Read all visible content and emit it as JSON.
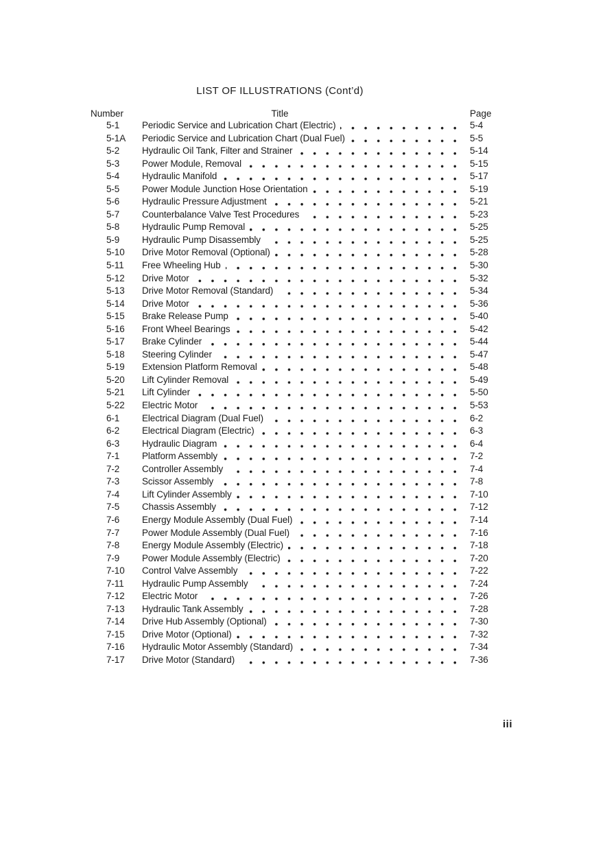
{
  "page": {
    "heading": "LIST OF ILLUSTRATIONS (Cont’d)",
    "columns": {
      "number": "Number",
      "title": "Title",
      "page": "Page"
    },
    "entries": [
      {
        "number": "5-1",
        "title": "Periodic Service and Lubrication Chart (Electric)",
        "page": "5-4"
      },
      {
        "number": "5-1A",
        "title": "Periodic Service and Lubrication Chart (Dual Fuel)",
        "page": "5-5"
      },
      {
        "number": "5-2",
        "title": "Hydraulic Oil Tank, Filter and Strainer",
        "page": "5-14"
      },
      {
        "number": "5-3",
        "title": "Power Module, Removal",
        "page": "5-15"
      },
      {
        "number": "5-4",
        "title": "Hydraulic Manifold",
        "page": "5-17"
      },
      {
        "number": "5-5",
        "title": "Power Module Junction Hose Orientation",
        "page": "5-19"
      },
      {
        "number": "5-6",
        "title": "Hydraulic Pressure Adjustment",
        "page": "5-21"
      },
      {
        "number": "5-7",
        "title": "Counterbalance Valve Test Procedures",
        "page": "5-23"
      },
      {
        "number": "5-8",
        "title": "Hydraulic Pump Removal",
        "page": "5-25"
      },
      {
        "number": "5-9",
        "title": "Hydraulic Pump Disassembly",
        "page": "5-25"
      },
      {
        "number": "5-10",
        "title": "Drive Motor Removal (Optional)",
        "page": "5-28"
      },
      {
        "number": "5-11",
        "title": "Free Wheeling Hub",
        "page": "5-30"
      },
      {
        "number": "5-12",
        "title": "Drive Motor",
        "page": "5-32"
      },
      {
        "number": "5-13",
        "title": "Drive Motor Removal (Standard)",
        "page": "5-34"
      },
      {
        "number": "5-14",
        "title": "Drive Motor",
        "page": "5-36"
      },
      {
        "number": "5-15",
        "title": "Brake Release Pump",
        "page": "5-40"
      },
      {
        "number": "5-16",
        "title": "Front Wheel Bearings",
        "page": "5-42"
      },
      {
        "number": "5-17",
        "title": "Brake Cylinder",
        "page": "5-44"
      },
      {
        "number": "5-18",
        "title": "Steering Cylinder",
        "page": "5-47"
      },
      {
        "number": "5-19",
        "title": "Extension Platform Removal",
        "page": "5-48"
      },
      {
        "number": "5-20",
        "title": "Lift Cylinder Removal",
        "page": "5-49"
      },
      {
        "number": "5-21",
        "title": "Lift Cylinder",
        "page": "5-50"
      },
      {
        "number": "5-22",
        "title": "Electric Motor",
        "page": "5-53"
      },
      {
        "number": "6-1",
        "title": "Electrical Diagram (Dual Fuel)",
        "page": "6-2"
      },
      {
        "number": "6-2",
        "title": "Electrical Diagram (Electric)",
        "page": "6-3"
      },
      {
        "number": "6-3",
        "title": "Hydraulic Diagram",
        "page": "6-4"
      },
      {
        "number": "7-1",
        "title": "Platform Assembly",
        "page": "7-2"
      },
      {
        "number": "7-2",
        "title": "Controller Assembly",
        "page": "7-4"
      },
      {
        "number": "7-3",
        "title": "Scissor Assembly",
        "page": "7-8"
      },
      {
        "number": "7-4",
        "title": "Lift Cylinder Assembly",
        "page": "7-10"
      },
      {
        "number": "7-5",
        "title": "Chassis Assembly",
        "page": "7-12"
      },
      {
        "number": "7-6",
        "title": "Energy Module Assembly (Dual Fuel)",
        "page": "7-14"
      },
      {
        "number": "7-7",
        "title": "Power Module Assembly (Dual Fuel)",
        "page": "7-16"
      },
      {
        "number": "7-8",
        "title": "Energy Module Assembly (Electric)",
        "page": "7-18"
      },
      {
        "number": "7-9",
        "title": "Power Module Assembly (Electric)",
        "page": "7-20"
      },
      {
        "number": "7-10",
        "title": "Control Valve Assembly",
        "page": "7-22"
      },
      {
        "number": "7-11",
        "title": "Hydraulic Pump Assembly",
        "page": "7-24"
      },
      {
        "number": "7-12",
        "title": "Electric Motor",
        "page": "7-26"
      },
      {
        "number": "7-13",
        "title": "Hydraulic Tank Assembly",
        "page": "7-28"
      },
      {
        "number": "7-14",
        "title": "Drive Hub Assembly (Optional)",
        "page": "7-30"
      },
      {
        "number": "7-15",
        "title": "Drive Motor (Optional)",
        "page": "7-32"
      },
      {
        "number": "7-16",
        "title": "Hydraulic Motor Assembly (Standard)",
        "page": "7-34"
      },
      {
        "number": "7-17",
        "title": "Drive Motor (Standard)",
        "page": "7-36"
      }
    ],
    "folio": "iii"
  },
  "colors": {
    "ink": "#1b1b1b",
    "paper": "#ffffff"
  }
}
